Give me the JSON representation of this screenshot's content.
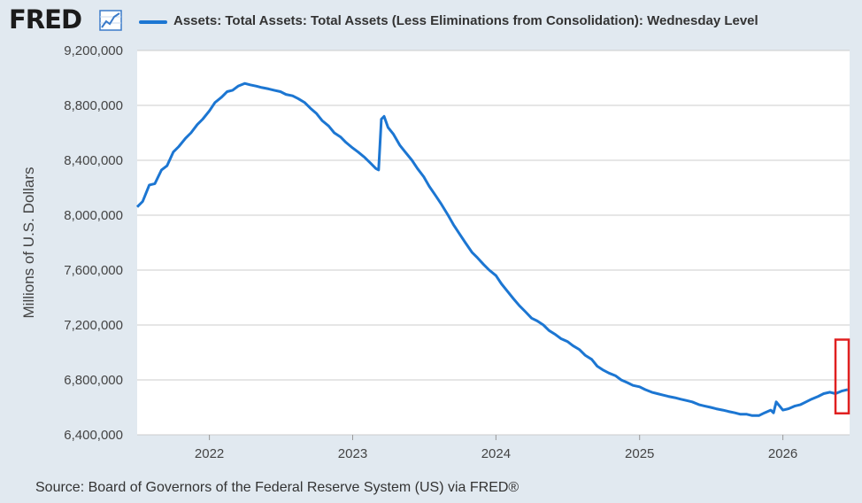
{
  "header": {
    "logo_text": "FRED",
    "logo_icon": "line-graph-icon",
    "legend_label": "Assets: Total Assets: Total Assets (Less Eliminations from Consolidation): Wednesday Level"
  },
  "source": "Source: Board of Governors of the Federal Reserve System (US) via FRED®",
  "colors": {
    "background": "#e1e9f0",
    "plot_bg": "#ffffff",
    "line": "#1c76d2",
    "grid": "#cccccc",
    "highlight": "#e02020"
  },
  "chart_data": {
    "type": "line",
    "title": "",
    "xlabel": "",
    "ylabel": "Millions of U.S. Dollars",
    "ylim": [
      6400000,
      9200000
    ],
    "xlim": [
      "2021-07-01",
      "2026-06-20"
    ],
    "yticks": [
      {
        "v": 6400000,
        "label": "6,400,000"
      },
      {
        "v": 6800000,
        "label": "6,800,000"
      },
      {
        "v": 7200000,
        "label": "7,200,000"
      },
      {
        "v": 7600000,
        "label": "7,600,000"
      },
      {
        "v": 8000000,
        "label": "8,000,000"
      },
      {
        "v": 8400000,
        "label": "8,400,000"
      },
      {
        "v": 8800000,
        "label": "8,800,000"
      },
      {
        "v": 9200000,
        "label": "9,200,000"
      }
    ],
    "xticks": [
      {
        "v": "2022-01-01",
        "label": "2022"
      },
      {
        "v": "2023-01-01",
        "label": "2023"
      },
      {
        "v": "2024-01-01",
        "label": "2024"
      },
      {
        "v": "2025-01-01",
        "label": "2025"
      },
      {
        "v": "2026-01-01",
        "label": "2026"
      }
    ],
    "grid": true,
    "series": [
      {
        "name": "Assets: Total Assets: Total Assets (Less Eliminations from Consolidation): Wednesday Level",
        "x": [
          "2021-07-01",
          "2021-07-15",
          "2021-08-01",
          "2021-08-15",
          "2021-09-01",
          "2021-09-15",
          "2021-10-01",
          "2021-10-15",
          "2021-11-01",
          "2021-11-15",
          "2021-12-01",
          "2021-12-15",
          "2022-01-01",
          "2022-01-15",
          "2022-02-01",
          "2022-02-15",
          "2022-03-01",
          "2022-03-15",
          "2022-04-01",
          "2022-04-15",
          "2022-05-01",
          "2022-05-15",
          "2022-06-01",
          "2022-06-15",
          "2022-07-01",
          "2022-07-15",
          "2022-08-01",
          "2022-08-15",
          "2022-09-01",
          "2022-09-15",
          "2022-10-01",
          "2022-10-15",
          "2022-11-01",
          "2022-11-15",
          "2022-12-01",
          "2022-12-15",
          "2023-01-01",
          "2023-01-15",
          "2023-02-01",
          "2023-02-15",
          "2023-03-01",
          "2023-03-08",
          "2023-03-15",
          "2023-03-22",
          "2023-04-01",
          "2023-04-15",
          "2023-05-01",
          "2023-05-15",
          "2023-06-01",
          "2023-06-15",
          "2023-07-01",
          "2023-07-15",
          "2023-08-01",
          "2023-08-15",
          "2023-09-01",
          "2023-09-15",
          "2023-10-01",
          "2023-10-15",
          "2023-11-01",
          "2023-11-15",
          "2023-12-01",
          "2023-12-15",
          "2024-01-01",
          "2024-01-15",
          "2024-02-01",
          "2024-02-15",
          "2024-03-01",
          "2024-03-15",
          "2024-04-01",
          "2024-04-15",
          "2024-05-01",
          "2024-05-15",
          "2024-06-01",
          "2024-06-15",
          "2024-07-01",
          "2024-07-15",
          "2024-08-01",
          "2024-08-15",
          "2024-09-01",
          "2024-09-15",
          "2024-10-01",
          "2024-10-15",
          "2024-11-01",
          "2024-11-15",
          "2024-12-01",
          "2024-12-15",
          "2025-01-01",
          "2025-01-15",
          "2025-02-01",
          "2025-02-15",
          "2025-03-01",
          "2025-03-15",
          "2025-04-01",
          "2025-04-15",
          "2025-05-01",
          "2025-05-15",
          "2025-06-01",
          "2025-06-15",
          "2025-07-01",
          "2025-07-15",
          "2025-08-01",
          "2025-08-15",
          "2025-09-01",
          "2025-09-15",
          "2025-10-01",
          "2025-10-15",
          "2025-11-01",
          "2025-11-15",
          "2025-12-01",
          "2025-12-08",
          "2025-12-15",
          "2026-01-01",
          "2026-01-15",
          "2026-02-01",
          "2026-02-15",
          "2026-03-01",
          "2026-03-15",
          "2026-04-01",
          "2026-04-15",
          "2026-05-01",
          "2026-05-15",
          "2026-06-01",
          "2026-06-15"
        ],
        "y": [
          8060000,
          8100000,
          8220000,
          8230000,
          8330000,
          8360000,
          8460000,
          8500000,
          8560000,
          8600000,
          8660000,
          8700000,
          8760000,
          8820000,
          8860000,
          8900000,
          8910000,
          8940000,
          8960000,
          8950000,
          8940000,
          8930000,
          8920000,
          8910000,
          8900000,
          8880000,
          8870000,
          8850000,
          8820000,
          8780000,
          8740000,
          8690000,
          8650000,
          8600000,
          8570000,
          8530000,
          8490000,
          8460000,
          8420000,
          8380000,
          8340000,
          8330000,
          8700000,
          8720000,
          8640000,
          8590000,
          8510000,
          8460000,
          8400000,
          8340000,
          8280000,
          8210000,
          8140000,
          8080000,
          8000000,
          7930000,
          7860000,
          7800000,
          7730000,
          7690000,
          7640000,
          7600000,
          7560000,
          7500000,
          7440000,
          7390000,
          7340000,
          7300000,
          7250000,
          7230000,
          7200000,
          7160000,
          7130000,
          7100000,
          7080000,
          7050000,
          7020000,
          6980000,
          6950000,
          6900000,
          6870000,
          6850000,
          6830000,
          6800000,
          6780000,
          6760000,
          6750000,
          6730000,
          6710000,
          6700000,
          6690000,
          6680000,
          6670000,
          6660000,
          6650000,
          6640000,
          6620000,
          6610000,
          6600000,
          6590000,
          6580000,
          6570000,
          6560000,
          6550000,
          6550000,
          6540000,
          6540000,
          6560000,
          6580000,
          6560000,
          6640000,
          6580000,
          6590000,
          6610000,
          6620000,
          6640000,
          6660000,
          6680000,
          6700000,
          6710000,
          6700000,
          6720000,
          6730000
        ]
      }
    ],
    "annotations": [
      {
        "type": "rect",
        "x_range": [
          "2026-05-15",
          "2026-06-20"
        ],
        "y_range": [
          6750000,
          6900000
        ],
        "color": "#e02020"
      }
    ]
  }
}
